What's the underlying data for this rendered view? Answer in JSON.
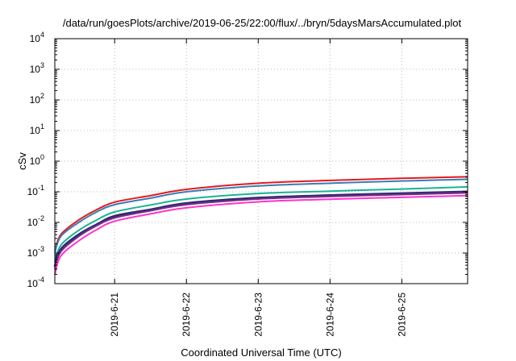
{
  "chart_data": {
    "type": "line",
    "title": "/data/run/goesPlots/archive/2019-06-25/22:00/flux/../bryn/5daysMarsAccumulated.plot",
    "xlabel": "Coordinated Universal Time (UTC)",
    "ylabel": "cSv",
    "y_scale": "log",
    "xlim": [
      "2019-06-20T04:00",
      "2019-06-25T22:00"
    ],
    "ylim": [
      0.0001,
      10000
    ],
    "grid": true,
    "x_ticks": [
      "2019-6-21",
      "2019-6-22",
      "2019-6-23",
      "2019-6-24",
      "2019-6-25"
    ],
    "y_ticks": [
      {
        "base": "10",
        "exp": "-4",
        "value": 0.0001
      },
      {
        "base": "10",
        "exp": "-3",
        "value": 0.001
      },
      {
        "base": "10",
        "exp": "-2",
        "value": 0.01
      },
      {
        "base": "10",
        "exp": "-1",
        "value": 0.1
      },
      {
        "base": "10",
        "exp": "0",
        "value": 1
      },
      {
        "base": "10",
        "exp": "1",
        "value": 10
      },
      {
        "base": "10",
        "exp": "2",
        "value": 100
      },
      {
        "base": "10",
        "exp": "3",
        "value": 1000
      },
      {
        "base": "10",
        "exp": "4",
        "value": 10000
      }
    ],
    "x": [
      "2019-06-20T04:00",
      "2019-06-20T06:00",
      "2019-06-20T12:00",
      "2019-06-20T18:00",
      "2019-06-21T00:00",
      "2019-06-21T12:00",
      "2019-06-22T00:00",
      "2019-06-23T00:00",
      "2019-06-24T00:00",
      "2019-06-25T00:00",
      "2019-06-25T22:00"
    ],
    "series": [
      {
        "color": "#e41a1c",
        "width": 2,
        "values": [
          0.0012,
          0.004,
          0.012,
          0.026,
          0.046,
          0.075,
          0.12,
          0.19,
          0.235,
          0.275,
          0.31
        ]
      },
      {
        "color": "#377eb8",
        "width": 2,
        "values": [
          0.001,
          0.0035,
          0.01,
          0.022,
          0.038,
          0.062,
          0.1,
          0.155,
          0.19,
          0.225,
          0.255
        ]
      },
      {
        "color": "#1ab394",
        "width": 2,
        "values": [
          0.0005,
          0.0018,
          0.0055,
          0.012,
          0.022,
          0.037,
          0.058,
          0.088,
          0.105,
          0.123,
          0.145
        ]
      },
      {
        "color": "#2e2a6e",
        "width": 3,
        "values": [
          0.00035,
          0.0013,
          0.004,
          0.0085,
          0.016,
          0.026,
          0.042,
          0.063,
          0.076,
          0.088,
          0.1
        ]
      },
      {
        "color": "#7b2d8b",
        "width": 2,
        "values": [
          0.0003,
          0.0011,
          0.0035,
          0.0078,
          0.014,
          0.024,
          0.038,
          0.058,
          0.07,
          0.081,
          0.092
        ]
      },
      {
        "color": "#ff33cc",
        "width": 2,
        "values": [
          0.0002,
          0.0008,
          0.0025,
          0.0058,
          0.011,
          0.019,
          0.03,
          0.047,
          0.057,
          0.066,
          0.075
        ]
      }
    ]
  }
}
